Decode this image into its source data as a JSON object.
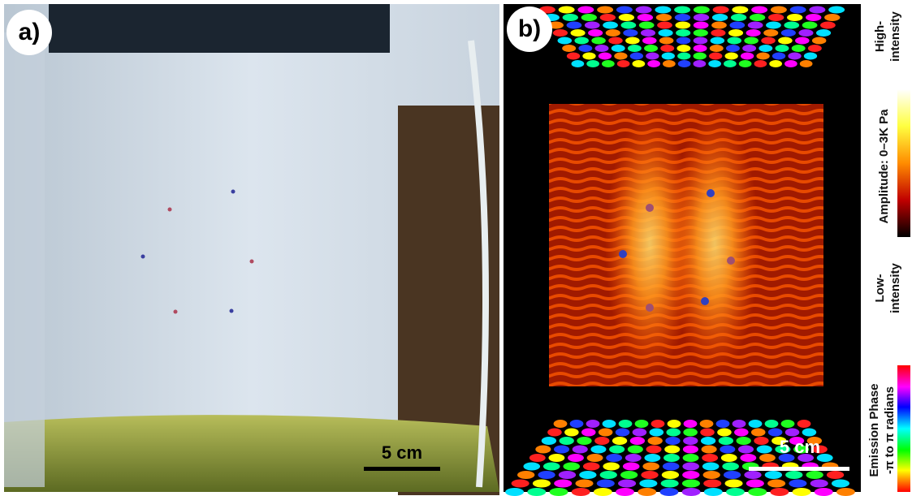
{
  "panels": [
    {
      "label": "a)",
      "scale_bar": "5 cm"
    },
    {
      "label": "b)",
      "scale_bar": "5 cm"
    }
  ],
  "colorbars": {
    "amplitude": {
      "high": [
        "High-",
        "intensity"
      ],
      "title": "Amplitude: 0–3K Pa",
      "low": [
        "Low-",
        "intensity"
      ]
    },
    "phase": {
      "title": [
        "Emission Phase",
        "-π to π radians"
      ]
    }
  }
}
